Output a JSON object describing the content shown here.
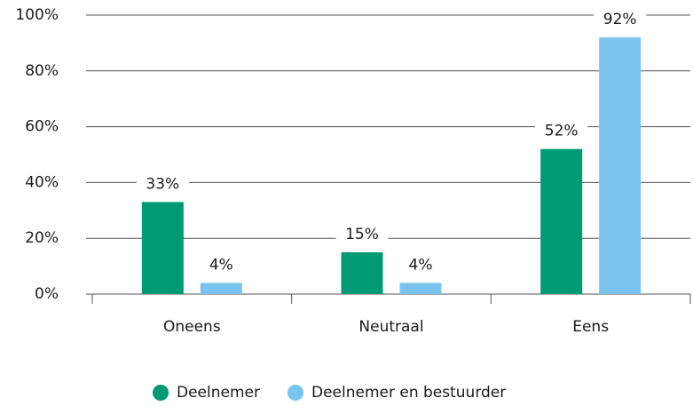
{
  "chart_data": {
    "type": "bar",
    "categories": [
      "Oneens",
      "Neutraal",
      "Eens"
    ],
    "series": [
      {
        "name": "Deelnemer",
        "color": "#009a74",
        "values": [
          33,
          15,
          52
        ],
        "value_labels": [
          "33%",
          "15%",
          "52%"
        ]
      },
      {
        "name": "Deelnemer en bestuurder",
        "color": "#79c4ee",
        "values": [
          4,
          4,
          92
        ],
        "value_labels": [
          "4%",
          "4%",
          "92%"
        ]
      }
    ],
    "ylim": [
      0,
      100
    ],
    "yticks": [
      {
        "value": 0,
        "label": "0%"
      },
      {
        "value": 20,
        "label": "20%"
      },
      {
        "value": 40,
        "label": "40%"
      },
      {
        "value": 60,
        "label": "60%"
      },
      {
        "value": 80,
        "label": "80%"
      },
      {
        "value": 100,
        "label": "100%"
      }
    ],
    "grid": true,
    "legend": "bottom"
  }
}
